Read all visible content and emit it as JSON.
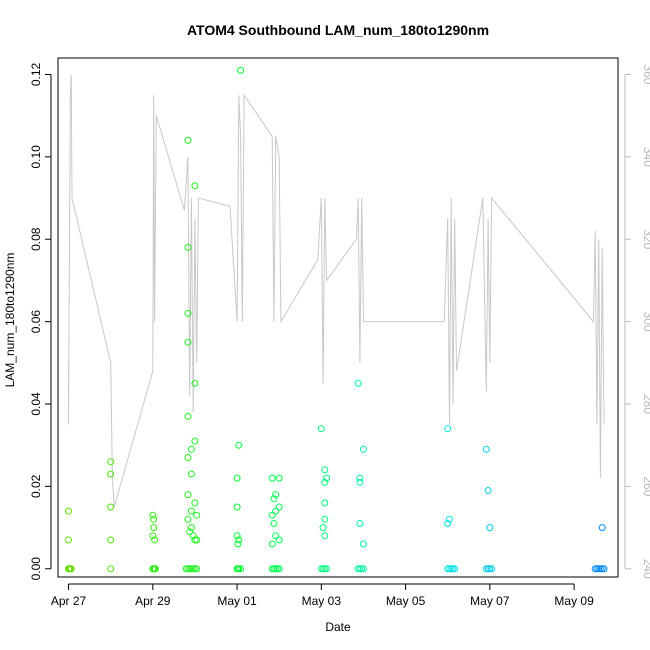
{
  "chart_data": {
    "type": "scatter",
    "title": "ATOM4 Southbound LAM_num_180to1290nm",
    "xlabel": "Date",
    "ylabel": "LAM_num_180to1290nm",
    "x_range": [
      "2016-04-26T18:00",
      "2016-05-10T01:00"
    ],
    "ylim": [
      -0.002,
      0.124
    ],
    "y2lim": [
      238,
      364
    ],
    "x_ticks": [
      {
        "date": "2016-04-27",
        "label": "Apr 27"
      },
      {
        "date": "2016-04-29",
        "label": "Apr 29"
      },
      {
        "date": "2016-05-01",
        "label": "May 01"
      },
      {
        "date": "2016-05-03",
        "label": "May 03"
      },
      {
        "date": "2016-05-05",
        "label": "May 05"
      },
      {
        "date": "2016-05-07",
        "label": "May 07"
      },
      {
        "date": "2016-05-09",
        "label": "May 09"
      }
    ],
    "y_ticks": [
      {
        "value": 0.0,
        "label": "0.00"
      },
      {
        "value": 0.02,
        "label": "0.02"
      },
      {
        "value": 0.04,
        "label": "0.04"
      },
      {
        "value": 0.06,
        "label": "0.06"
      },
      {
        "value": 0.08,
        "label": "0.08"
      },
      {
        "value": 0.1,
        "label": "0.10"
      },
      {
        "value": 0.12,
        "label": "0.12"
      }
    ],
    "y2_ticks": [
      {
        "value": 240,
        "label": "240"
      },
      {
        "value": 260,
        "label": "260"
      },
      {
        "value": 280,
        "label": "280"
      },
      {
        "value": 300,
        "label": "300"
      },
      {
        "value": 320,
        "label": "320"
      },
      {
        "value": 340,
        "label": "340"
      },
      {
        "value": 360,
        "label": "360"
      }
    ],
    "grid": false,
    "point_color_gradient": [
      "#66dd00",
      "#00ff33",
      "#00f0e0",
      "#0088ff"
    ],
    "line_color": "#c8c8c8",
    "series": [
      {
        "points": [
          [
            "2016-04-27T00:00",
            0.0
          ],
          [
            "2016-04-27T00:30",
            0.0
          ],
          [
            "2016-04-27T01:00",
            0.0
          ],
          [
            "2016-04-27T01:30",
            0.0
          ],
          [
            "2016-04-27T00:00",
            0.014
          ],
          [
            "2016-04-27T00:00",
            0.007
          ],
          [
            "2016-04-28T00:00",
            0.0
          ],
          [
            "2016-04-28T00:00",
            0.026
          ],
          [
            "2016-04-28T00:00",
            0.023
          ],
          [
            "2016-04-28T00:00",
            0.015
          ],
          [
            "2016-04-28T00:00",
            0.007
          ],
          [
            "2016-04-29T00:00",
            0.0
          ],
          [
            "2016-04-29T00:30",
            0.0
          ],
          [
            "2016-04-29T01:00",
            0.0
          ],
          [
            "2016-04-29T01:30",
            0.0
          ],
          [
            "2016-04-29T00:00",
            0.013
          ],
          [
            "2016-04-29T00:30",
            0.012
          ],
          [
            "2016-04-29T00:30",
            0.01
          ],
          [
            "2016-04-29T00:00",
            0.008
          ],
          [
            "2016-04-29T01:00",
            0.007
          ],
          [
            "2016-04-29T19:00",
            0.0
          ],
          [
            "2016-04-29T20:00",
            0.0
          ],
          [
            "2016-04-29T21:00",
            0.0
          ],
          [
            "2016-04-29T22:00",
            0.0
          ],
          [
            "2016-04-29T23:00",
            0.0
          ],
          [
            "2016-04-30T00:00",
            0.0
          ],
          [
            "2016-04-30T01:00",
            0.0
          ],
          [
            "2016-04-29T20:00",
            0.104
          ],
          [
            "2016-04-30T00:00",
            0.093
          ],
          [
            "2016-04-29T20:00",
            0.078
          ],
          [
            "2016-04-29T20:00",
            0.062
          ],
          [
            "2016-04-29T20:00",
            0.055
          ],
          [
            "2016-04-30T00:00",
            0.045
          ],
          [
            "2016-04-29T20:00",
            0.037
          ],
          [
            "2016-04-30T00:00",
            0.031
          ],
          [
            "2016-04-29T22:00",
            0.029
          ],
          [
            "2016-04-29T20:00",
            0.027
          ],
          [
            "2016-04-29T22:00",
            0.023
          ],
          [
            "2016-04-29T20:00",
            0.018
          ],
          [
            "2016-04-30T00:00",
            0.016
          ],
          [
            "2016-04-29T22:00",
            0.014
          ],
          [
            "2016-04-30T01:00",
            0.013
          ],
          [
            "2016-04-29T20:00",
            0.012
          ],
          [
            "2016-04-29T22:00",
            0.01
          ],
          [
            "2016-04-29T21:00",
            0.009
          ],
          [
            "2016-04-29T23:00",
            0.008
          ],
          [
            "2016-04-30T00:00",
            0.007
          ],
          [
            "2016-04-30T01:00",
            0.007
          ],
          [
            "2016-05-01T00:00",
            0.0
          ],
          [
            "2016-05-01T00:30",
            0.0
          ],
          [
            "2016-05-01T01:00",
            0.0
          ],
          [
            "2016-05-01T02:00",
            0.0
          ],
          [
            "2016-05-01T02:00",
            0.121
          ],
          [
            "2016-05-01T01:00",
            0.03
          ],
          [
            "2016-05-01T00:00",
            0.022
          ],
          [
            "2016-05-01T00:00",
            0.015
          ],
          [
            "2016-05-01T00:00",
            0.008
          ],
          [
            "2016-05-01T01:00",
            0.007
          ],
          [
            "2016-05-01T00:30",
            0.006
          ],
          [
            "2016-05-01T20:00",
            0.0
          ],
          [
            "2016-05-01T21:00",
            0.0
          ],
          [
            "2016-05-01T22:00",
            0.0
          ],
          [
            "2016-05-01T23:00",
            0.0
          ],
          [
            "2016-05-02T00:00",
            0.0
          ],
          [
            "2016-05-01T20:00",
            0.022
          ],
          [
            "2016-05-02T00:00",
            0.022
          ],
          [
            "2016-05-01T22:00",
            0.018
          ],
          [
            "2016-05-01T21:00",
            0.017
          ],
          [
            "2016-05-02T00:00",
            0.015
          ],
          [
            "2016-05-01T22:00",
            0.014
          ],
          [
            "2016-05-01T20:00",
            0.013
          ],
          [
            "2016-05-01T21:00",
            0.011
          ],
          [
            "2016-05-01T22:00",
            0.008
          ],
          [
            "2016-05-02T00:00",
            0.007
          ],
          [
            "2016-05-01T20:00",
            0.006
          ],
          [
            "2016-05-03T00:00",
            0.0
          ],
          [
            "2016-05-03T01:00",
            0.0
          ],
          [
            "2016-05-03T02:00",
            0.0
          ],
          [
            "2016-05-03T03:00",
            0.0
          ],
          [
            "2016-05-03T00:00",
            0.034
          ],
          [
            "2016-05-03T02:00",
            0.024
          ],
          [
            "2016-05-03T03:00",
            0.022
          ],
          [
            "2016-05-03T02:00",
            0.021
          ],
          [
            "2016-05-03T02:00",
            0.016
          ],
          [
            "2016-05-03T02:00",
            0.012
          ],
          [
            "2016-05-03T01:00",
            0.01
          ],
          [
            "2016-05-03T02:00",
            0.008
          ],
          [
            "2016-05-03T21:00",
            0.0
          ],
          [
            "2016-05-03T22:00",
            0.0
          ],
          [
            "2016-05-03T23:00",
            0.0
          ],
          [
            "2016-05-04T00:00",
            0.0
          ],
          [
            "2016-05-03T21:00",
            0.045
          ],
          [
            "2016-05-04T00:00",
            0.029
          ],
          [
            "2016-05-03T22:00",
            0.022
          ],
          [
            "2016-05-03T22:00",
            0.021
          ],
          [
            "2016-05-03T22:00",
            0.011
          ],
          [
            "2016-05-04T00:00",
            0.006
          ],
          [
            "2016-05-06T00:00",
            0.0
          ],
          [
            "2016-05-06T01:00",
            0.0
          ],
          [
            "2016-05-06T02:00",
            0.0
          ],
          [
            "2016-05-06T03:00",
            0.0
          ],
          [
            "2016-05-06T04:00",
            0.0
          ],
          [
            "2016-05-06T00:00",
            0.034
          ],
          [
            "2016-05-06T01:00",
            0.012
          ],
          [
            "2016-05-06T00:00",
            0.011
          ],
          [
            "2016-05-06T22:00",
            0.0
          ],
          [
            "2016-05-06T23:00",
            0.0
          ],
          [
            "2016-05-07T00:00",
            0.0
          ],
          [
            "2016-05-07T01:00",
            0.0
          ],
          [
            "2016-05-06T22:00",
            0.029
          ],
          [
            "2016-05-06T23:00",
            0.019
          ],
          [
            "2016-05-07T00:00",
            0.01
          ],
          [
            "2016-05-09T12:00",
            0.0
          ],
          [
            "2016-05-09T13:00",
            0.0
          ],
          [
            "2016-05-09T14:00",
            0.0
          ],
          [
            "2016-05-09T15:00",
            0.0
          ],
          [
            "2016-05-09T16:00",
            0.0
          ],
          [
            "2016-05-09T17:00",
            0.0
          ],
          [
            "2016-05-09T16:00",
            0.01
          ]
        ]
      },
      {
        "axis": "right",
        "points": [
          [
            "2016-04-27T00:00",
            290
          ],
          [
            "2016-04-27T00:00",
            275
          ],
          [
            "2016-04-27T01:00",
            355
          ],
          [
            "2016-04-27T01:30",
            360
          ],
          [
            "2016-04-27T02:00",
            330
          ],
          [
            "2016-04-28T00:00",
            290
          ],
          [
            "2016-04-28T01:00",
            262
          ],
          [
            "2016-04-28T02:00",
            255
          ],
          [
            "2016-04-29T00:00",
            288
          ],
          [
            "2016-04-29T00:30",
            355
          ],
          [
            "2016-04-29T01:00",
            300
          ],
          [
            "2016-04-29T02:00",
            350
          ],
          [
            "2016-04-29T18:00",
            327
          ],
          [
            "2016-04-29T20:00",
            340
          ],
          [
            "2016-04-29T21:00",
            282
          ],
          [
            "2016-04-29T22:00",
            330
          ],
          [
            "2016-04-29T23:00",
            278
          ],
          [
            "2016-04-30T00:00",
            325
          ],
          [
            "2016-04-30T01:00",
            290
          ],
          [
            "2016-04-30T02:00",
            330
          ],
          [
            "2016-04-30T20:00",
            328
          ],
          [
            "2016-05-01T00:00",
            300
          ],
          [
            "2016-05-01T01:00",
            355
          ],
          [
            "2016-05-01T02:00",
            345
          ],
          [
            "2016-05-01T03:00",
            300
          ],
          [
            "2016-05-01T04:00",
            355
          ],
          [
            "2016-05-01T20:00",
            345
          ],
          [
            "2016-05-01T21:00",
            300
          ],
          [
            "2016-05-01T22:00",
            345
          ],
          [
            "2016-05-02T00:00",
            340
          ],
          [
            "2016-05-02T01:00",
            300
          ],
          [
            "2016-05-02T22:00",
            315
          ],
          [
            "2016-05-03T00:00",
            330
          ],
          [
            "2016-05-03T01:00",
            285
          ],
          [
            "2016-05-03T02:00",
            330
          ],
          [
            "2016-05-03T03:00",
            310
          ],
          [
            "2016-05-03T20:00",
            320
          ],
          [
            "2016-05-03T21:00",
            330
          ],
          [
            "2016-05-03T22:00",
            290
          ],
          [
            "2016-05-03T23:00",
            330
          ],
          [
            "2016-05-04T00:00",
            300
          ],
          [
            "2016-05-05T22:00",
            300
          ],
          [
            "2016-05-06T00:00",
            325
          ],
          [
            "2016-05-06T01:00",
            275
          ],
          [
            "2016-05-06T02:00",
            330
          ],
          [
            "2016-05-06T03:00",
            280
          ],
          [
            "2016-05-06T04:00",
            325
          ],
          [
            "2016-05-06T05:00",
            288
          ],
          [
            "2016-05-06T20:00",
            330
          ],
          [
            "2016-05-06T22:00",
            283
          ],
          [
            "2016-05-06T23:00",
            325
          ],
          [
            "2016-05-07T00:00",
            290
          ],
          [
            "2016-05-07T01:00",
            330
          ],
          [
            "2016-05-09T11:00",
            300
          ],
          [
            "2016-05-09T12:00",
            322
          ],
          [
            "2016-05-09T13:00",
            275
          ],
          [
            "2016-05-09T14:00",
            320
          ],
          [
            "2016-05-09T15:00",
            262
          ],
          [
            "2016-05-09T16:00",
            318
          ],
          [
            "2016-05-09T17:00",
            275
          ]
        ]
      }
    ]
  }
}
